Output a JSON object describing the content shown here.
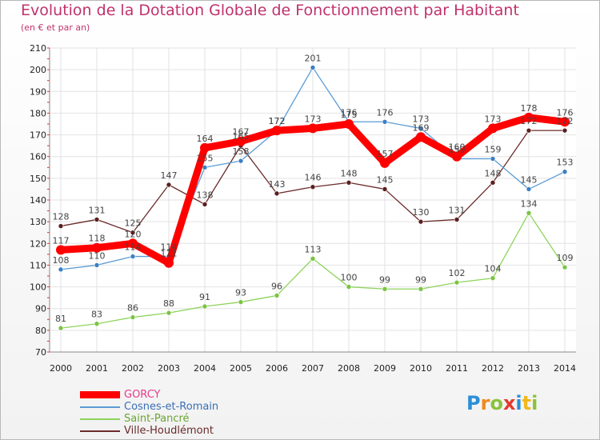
{
  "chart_data": {
    "type": "line",
    "title": "Evolution de la Dotation Globale de Fonctionnement par Habitant",
    "subtitle": "(en € et par an)",
    "x": [
      "2000",
      "2001",
      "2002",
      "2003",
      "2004",
      "2005",
      "2006",
      "2007",
      "2008",
      "2009",
      "2010",
      "2011",
      "2012",
      "2013",
      "2014"
    ],
    "ylim": [
      70,
      210
    ],
    "yticks": [
      70,
      80,
      90,
      100,
      110,
      120,
      130,
      140,
      150,
      160,
      170,
      180,
      190,
      200,
      210
    ],
    "grid": true,
    "legend_position": "bottom-left",
    "series": [
      {
        "name": "GORCY",
        "color": "#ff0000",
        "values": [
          117,
          118,
          120,
          111,
          164,
          167,
          172,
          173,
          175,
          157,
          169,
          160,
          173,
          178,
          176
        ]
      },
      {
        "name": "Cosnes-et-Romain",
        "color": "#5b9bd5",
        "values": [
          108,
          110,
          114,
          114,
          155,
          158,
          172,
          201,
          176,
          176,
          173,
          159,
          159,
          145,
          153
        ]
      },
      {
        "name": "Saint-Pancré",
        "color": "#8ed45c",
        "values": [
          81,
          83,
          86,
          88,
          91,
          93,
          96,
          113,
          100,
          99,
          99,
          102,
          104,
          134,
          109
        ]
      },
      {
        "name": "Ville-Houdlémont",
        "color": "#6b2a2a",
        "values": [
          128,
          131,
          125,
          147,
          138,
          165,
          143,
          146,
          148,
          145,
          130,
          131,
          148,
          172,
          172
        ]
      }
    ]
  },
  "logo": {
    "letters": [
      "P",
      "r",
      "o",
      "x",
      "i",
      "t",
      "i"
    ],
    "colors": [
      "#2b8fd8",
      "#f08a1c",
      "#8ac23c",
      "#e23b2e",
      "#2b8fd8",
      "#f0b81c",
      "#8ac23c"
    ]
  }
}
